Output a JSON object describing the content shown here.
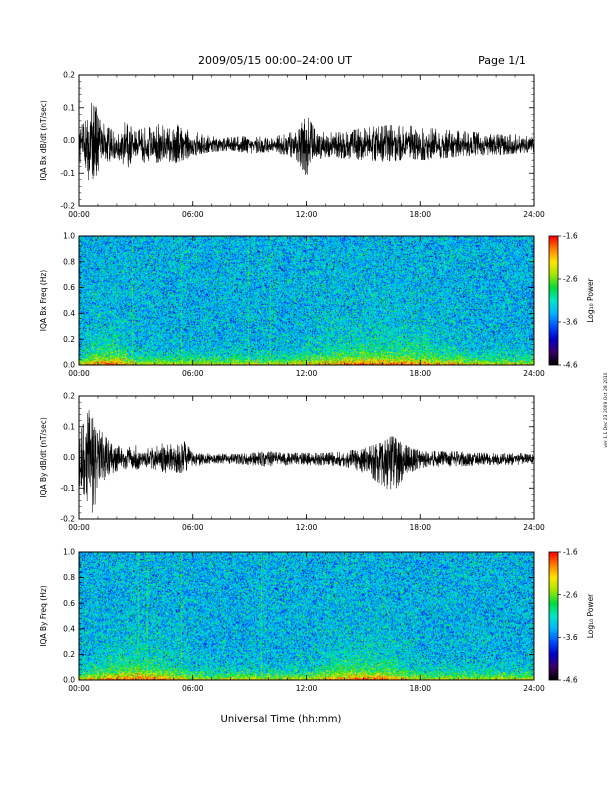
{
  "header": {
    "title": "2009/05/15  00:00–24:00 UT",
    "page": "Page 1/1"
  },
  "x_ticks": [
    "00:00",
    "06:00",
    "12:00",
    "18:00",
    "24:00"
  ],
  "xlabel": "Universal Time (hh:mm)",
  "side_note": "ver 1.1 Dec 23 2009  Oct 28 2010",
  "colors": {
    "signal": "#000000",
    "cmap": [
      "#000000",
      "#3a006a",
      "#0000c8",
      "#0050ff",
      "#00b4ff",
      "#00e6c8",
      "#00dc3c",
      "#a0e600",
      "#ffe600",
      "#ff8000",
      "#ff0000"
    ]
  },
  "chart_data": [
    {
      "type": "line",
      "id": "bx",
      "ylabel": "IQA Bx dB/dt (nT/sec)",
      "xlim": [
        0,
        24
      ],
      "ylim": [
        -0.2,
        0.2
      ],
      "yticks": [
        "0.2",
        "0.1",
        "0.0",
        "-0.1",
        "-0.2"
      ],
      "grid": false,
      "envelope": {
        "x_hours": [
          0,
          0.5,
          0.8,
          1.0,
          1.5,
          2.0,
          2.5,
          3.0,
          3.5,
          4.0,
          4.5,
          5.0,
          5.5,
          6.0,
          6.5,
          7.0,
          8.0,
          9.0,
          10.0,
          11.0,
          11.5,
          12.0,
          12.5,
          13.0,
          14.0,
          15.0,
          16.0,
          17.0,
          18.0,
          19.0,
          20.0,
          21.0,
          22.0,
          23.0,
          24.0
        ],
        "max": [
          0.04,
          0.09,
          0.14,
          0.07,
          0.04,
          0.03,
          0.06,
          0.03,
          0.04,
          0.05,
          0.05,
          0.04,
          0.06,
          0.03,
          0.02,
          0.015,
          0.01,
          0.015,
          0.01,
          0.02,
          0.04,
          0.08,
          0.03,
          0.025,
          0.025,
          0.04,
          0.045,
          0.05,
          0.04,
          0.035,
          0.03,
          0.025,
          0.02,
          0.02,
          0.01
        ],
        "min": [
          -0.07,
          -0.12,
          -0.16,
          -0.1,
          -0.07,
          -0.05,
          -0.09,
          -0.05,
          -0.07,
          -0.07,
          -0.06,
          -0.07,
          -0.06,
          -0.05,
          -0.04,
          -0.035,
          -0.03,
          -0.04,
          -0.035,
          -0.045,
          -0.06,
          -0.11,
          -0.06,
          -0.05,
          -0.055,
          -0.06,
          -0.065,
          -0.06,
          -0.06,
          -0.055,
          -0.05,
          -0.045,
          -0.045,
          -0.04,
          -0.035
        ],
        "center": -0.015
      }
    },
    {
      "type": "heatmap",
      "id": "bxs",
      "ylabel": "IQA Bx Freq (Hz)",
      "xlim": [
        0,
        24
      ],
      "ylim": [
        0,
        1
      ],
      "yticks": [
        "1.0",
        "0.8",
        "0.6",
        "0.4",
        "0.2",
        "0.0"
      ],
      "colorbar": {
        "label": "Log₁₀ Power",
        "range": [
          -4.6,
          -1.6
        ],
        "ticks": [
          "-1.6",
          "-2.6",
          "-3.6",
          "-4.6"
        ]
      },
      "vertical_lines_hours": [
        2.8,
        5.4,
        8.9,
        10.1
      ],
      "low_freq_enhancement_hours": [
        [
          0,
          3
        ],
        [
          11,
          21
        ]
      ]
    },
    {
      "type": "line",
      "id": "by",
      "ylabel": "IQA By dB/dt (nT/sec)",
      "xlim": [
        0,
        24
      ],
      "ylim": [
        -0.2,
        0.2
      ],
      "yticks": [
        "0.2",
        "0.1",
        "0.0",
        "-0.1",
        "-0.2"
      ],
      "grid": false,
      "envelope": {
        "x_hours": [
          0,
          0.5,
          0.8,
          1.0,
          1.5,
          2.0,
          2.5,
          3.0,
          3.5,
          4.0,
          4.5,
          5.0,
          5.5,
          6.0,
          6.5,
          7.0,
          8.0,
          9.0,
          10.0,
          11.0,
          12.0,
          13.0,
          14.0,
          15.0,
          16.0,
          16.5,
          17.0,
          17.5,
          18.0,
          19.0,
          20.0,
          21.0,
          22.0,
          23.0,
          24.0
        ],
        "max": [
          0.08,
          0.15,
          0.19,
          0.1,
          0.06,
          0.04,
          0.035,
          0.04,
          0.03,
          0.035,
          0.05,
          0.04,
          0.06,
          0.02,
          0.015,
          0.012,
          0.01,
          0.015,
          0.02,
          0.015,
          0.015,
          0.015,
          0.02,
          0.03,
          0.05,
          0.07,
          0.05,
          0.03,
          0.025,
          0.02,
          0.02,
          0.015,
          0.015,
          0.015,
          0.01
        ],
        "min": [
          -0.09,
          -0.15,
          -0.19,
          -0.1,
          -0.06,
          -0.045,
          -0.04,
          -0.04,
          -0.03,
          -0.04,
          -0.05,
          -0.05,
          -0.05,
          -0.03,
          -0.025,
          -0.02,
          -0.02,
          -0.025,
          -0.03,
          -0.025,
          -0.025,
          -0.025,
          -0.03,
          -0.05,
          -0.09,
          -0.12,
          -0.08,
          -0.05,
          -0.035,
          -0.03,
          -0.03,
          -0.025,
          -0.025,
          -0.025,
          -0.02
        ],
        "center": -0.005
      }
    },
    {
      "type": "heatmap",
      "id": "bys",
      "ylabel": "IQA By Freq (Hz)",
      "xlim": [
        0,
        24
      ],
      "ylim": [
        0,
        1
      ],
      "yticks": [
        "1.0",
        "0.8",
        "0.6",
        "0.4",
        "0.2",
        "0.0"
      ],
      "colorbar": {
        "label": "Log₁₀ Power",
        "range": [
          -4.6,
          -1.6
        ],
        "ticks": [
          "-1.6",
          "-2.6",
          "-3.6",
          "-4.6"
        ]
      },
      "vertical_lines_hours": [
        3.1,
        3.6,
        5.4,
        9.6
      ],
      "low_freq_enhancement_hours": [
        [
          0,
          6
        ],
        [
          12,
          18
        ]
      ]
    }
  ]
}
